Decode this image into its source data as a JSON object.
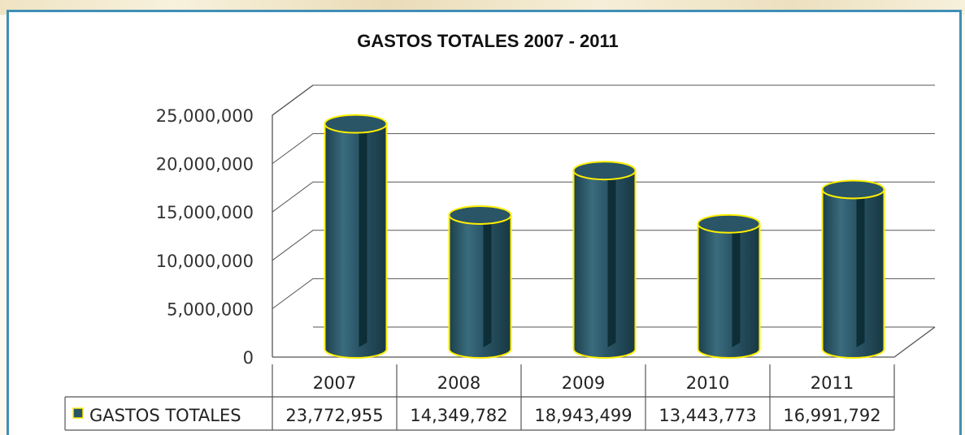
{
  "chart_data": {
    "type": "bar",
    "title": "GASTOS TOTALES 2007  - 2011",
    "categories": [
      "2007",
      "2008",
      "2009",
      "2010",
      "2011"
    ],
    "series": [
      {
        "name": "GASTOS TOTALES",
        "values": [
          23772955,
          14349782,
          18943499,
          13443773,
          16991792
        ],
        "value_labels": [
          "23,772,955",
          "14,349,782",
          "18,943,499",
          "13,443,773",
          "16,991,792"
        ]
      }
    ],
    "y_ticks": [
      "0",
      "5,000,000",
      "10,000,000",
      "15,000,000",
      "20,000,000",
      "25,000,000"
    ],
    "ylim": [
      0,
      25000000
    ],
    "xlabel": "",
    "ylabel": "",
    "grid": true,
    "legend": "data-table-left",
    "colors": {
      "bar": "#2a5566",
      "bar_dark": "#0b2a33",
      "bar_outline": "#ffee00",
      "frame": "#3f8fb6",
      "grid": "#555555"
    }
  }
}
